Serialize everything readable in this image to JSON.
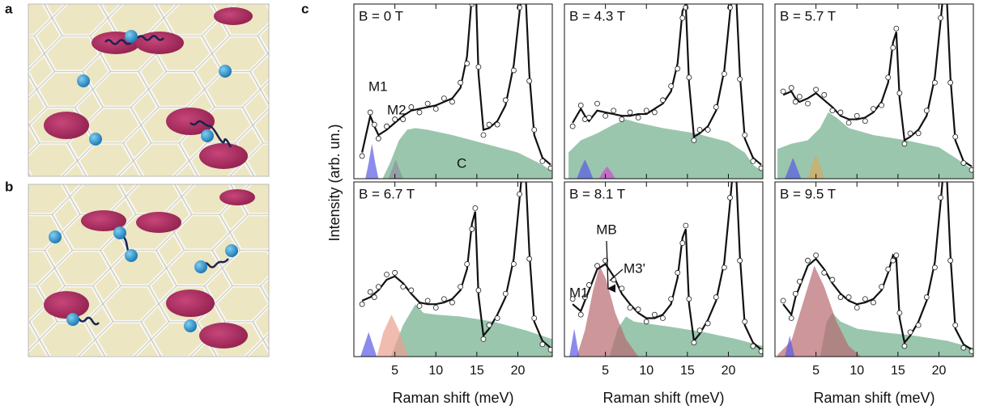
{
  "figure": {
    "panel_labels": [
      "a",
      "b",
      "c"
    ],
    "y_label": "Intensity (arb. un.)"
  },
  "chart_data": [
    {
      "type": "line",
      "title": "B = 0 T",
      "xlim": [
        0,
        24.2
      ],
      "ylim": [
        0,
        10
      ],
      "xticks": [
        5,
        10,
        15,
        20
      ],
      "x": [
        1,
        2,
        2.5,
        3,
        4,
        5,
        6,
        7,
        8,
        9,
        10,
        11,
        12,
        13,
        13.8,
        14.4,
        14.8,
        15.2,
        15.8,
        16.5,
        17.5,
        18.5,
        19.5,
        20.2,
        20.8,
        21.4,
        22,
        23,
        24
      ],
      "series": [
        {
          "style": "line",
          "color": "#111111",
          "values": [
            1.5,
            3.6,
            3.0,
            2.5,
            2.8,
            3.2,
            3.6,
            3.9,
            4.0,
            4.1,
            4.2,
            4.4,
            4.6,
            5.2,
            7,
            10.5,
            12,
            6,
            2.8,
            2.9,
            3.3,
            4.2,
            6.5,
            9.5,
            12,
            6,
            2.5,
            1.2,
            0.8
          ]
        },
        {
          "style": "points",
          "color": "#ffffff",
          "values": [
            1.3,
            3.8,
            3.1,
            2.3,
            3.0,
            3.4,
            3.4,
            4.1,
            3.8,
            4.3,
            4.0,
            4.6,
            4.4,
            5.5,
            6.6,
            10,
            12,
            6.4,
            2.5,
            3.1,
            3.1,
            4.5,
            6.2,
            9.8,
            12,
            5.6,
            2.8,
            1.0,
            0.6
          ]
        }
      ],
      "components": [
        {
          "color": "#5a5ae6",
          "label": "M1",
          "x": [
            1.4,
            1.8,
            2.2,
            2.6,
            3.0
          ],
          "values": [
            0,
            0.9,
            2.0,
            0.9,
            0
          ]
        },
        {
          "color": "#d048d0",
          "label": "M2",
          "x": [
            4.2,
            4.7,
            5.1,
            5.5,
            6.0
          ],
          "values": [
            0,
            0.6,
            1.1,
            0.6,
            0
          ]
        },
        {
          "color": "#6fae8c",
          "label": "C",
          "x": [
            3.5,
            4.5,
            5.5,
            6.5,
            7.5,
            9,
            12,
            16,
            20,
            23,
            24.2
          ],
          "values": [
            0,
            1.0,
            2.2,
            2.8,
            2.9,
            2.8,
            2.5,
            2.0,
            1.5,
            0.8,
            0.4
          ]
        }
      ]
    },
    {
      "type": "line",
      "title": "B = 4.3 T",
      "xlim": [
        0,
        24.2
      ],
      "ylim": [
        0,
        10
      ],
      "xticks": [
        5,
        10,
        15,
        20
      ],
      "x": [
        1,
        2,
        2.5,
        3,
        4,
        5,
        6,
        7,
        8,
        9,
        10,
        11,
        12,
        13,
        13.8,
        14.4,
        14.8,
        15.2,
        15.8,
        16.5,
        17.5,
        18.5,
        19.5,
        20.2,
        20.8,
        21.4,
        22,
        23,
        24
      ],
      "series": [
        {
          "style": "line",
          "color": "#111111",
          "values": [
            3.2,
            4.0,
            3.6,
            3.3,
            3.9,
            3.8,
            3.7,
            3.6,
            3.6,
            3.7,
            3.7,
            4.0,
            4.3,
            5.0,
            6.6,
            9.6,
            10,
            5.5,
            2.4,
            2.6,
            3.0,
            3.9,
            6.2,
            9.5,
            12,
            6,
            2.3,
            1.2,
            0.8
          ]
        },
        {
          "style": "points",
          "color": "#ffffff",
          "values": [
            3.0,
            4.2,
            3.4,
            3.5,
            4.3,
            3.6,
            3.9,
            3.4,
            3.8,
            3.5,
            3.9,
            3.8,
            4.5,
            5.3,
            6.3,
            9.2,
            9.8,
            5.8,
            2.2,
            2.8,
            2.8,
            4.1,
            6.0,
            9.8,
            12,
            5.7,
            2.5,
            1.0,
            0.6
          ]
        }
      ],
      "components": [
        {
          "color": "#6fae8c",
          "x": [
            0.5,
            2,
            4,
            6,
            7.5,
            9,
            12,
            16,
            20,
            22,
            23,
            24.2
          ],
          "values": [
            1.5,
            2.2,
            2.6,
            3.1,
            3.4,
            3.2,
            2.9,
            2.6,
            2.1,
            1.5,
            0.8,
            0.4
          ]
        },
        {
          "color": "#5a5ae6",
          "x": [
            1.5,
            2,
            2.5,
            3,
            3.5
          ],
          "values": [
            0,
            0.6,
            1.1,
            0.6,
            0
          ]
        },
        {
          "color": "#d048d0",
          "x": [
            4.2,
            4.7,
            5.2,
            5.7,
            6.2
          ],
          "values": [
            0,
            0.4,
            0.7,
            0.4,
            0
          ]
        }
      ]
    },
    {
      "type": "line",
      "title": "B = 5.7 T",
      "xlim": [
        0,
        24.2
      ],
      "ylim": [
        0,
        10
      ],
      "xticks": [
        5,
        10,
        15,
        20
      ],
      "x": [
        1,
        2,
        2.5,
        3,
        4,
        5,
        6,
        7,
        8,
        9,
        10,
        11,
        12,
        13,
        13.8,
        14.4,
        14.8,
        15.2,
        15.8,
        16.5,
        17.5,
        18.5,
        19.5,
        20.2,
        20.8,
        21.4,
        22,
        23,
        24
      ],
      "series": [
        {
          "style": "line",
          "color": "#111111",
          "values": [
            4.8,
            5.0,
            4.6,
            4.4,
            4.6,
            4.9,
            4.5,
            4.1,
            3.6,
            3.4,
            3.4,
            3.5,
            3.8,
            4.4,
            5.5,
            7.8,
            8.4,
            4.6,
            2.2,
            2.4,
            2.8,
            3.6,
            5.8,
            9,
            12,
            5.8,
            2.2,
            1.0,
            0.7
          ]
        },
        {
          "style": "points",
          "color": "#ffffff",
          "values": [
            5.0,
            5.2,
            4.4,
            4.7,
            4.3,
            5.1,
            4.8,
            3.9,
            3.8,
            3.2,
            3.6,
            3.3,
            4.0,
            4.2,
            5.8,
            7.5,
            8.6,
            4.9,
            2.0,
            2.6,
            2.6,
            3.9,
            5.5,
            9.2,
            12,
            5.5,
            2.4,
            0.9,
            0.5
          ]
        }
      ],
      "components": [
        {
          "color": "#6fae8c",
          "x": [
            0.3,
            2,
            4,
            5.5,
            6.5,
            7.5,
            9,
            12,
            16,
            20,
            22,
            24.2
          ],
          "values": [
            1.7,
            2.0,
            2.2,
            2.9,
            3.8,
            3.5,
            2.9,
            2.5,
            2.2,
            1.8,
            1.2,
            0.5
          ]
        },
        {
          "color": "#5a5ae6",
          "x": [
            1.2,
            1.7,
            2.2,
            2.7,
            3.2
          ],
          "values": [
            0,
            0.6,
            1.2,
            0.6,
            0
          ]
        },
        {
          "color": "#d9a860",
          "x": [
            4,
            4.5,
            5,
            5.5,
            6
          ],
          "values": [
            0,
            0.8,
            1.4,
            0.8,
            0
          ]
        }
      ]
    },
    {
      "type": "line",
      "title": "B = 6.7 T",
      "x_label": "Raman shift (meV)",
      "xlim": [
        0,
        24.2
      ],
      "ylim": [
        0,
        10
      ],
      "xticks": [
        5,
        10,
        15,
        20
      ],
      "x": [
        1,
        2,
        2.5,
        3,
        4,
        5,
        6,
        7,
        8,
        9,
        10,
        11,
        12,
        13,
        13.8,
        14.4,
        14.8,
        15.2,
        15.8,
        16.5,
        17.5,
        18.5,
        19.5,
        20.2,
        20.8,
        21.4,
        22,
        23,
        24
      ],
      "series": [
        {
          "style": "line",
          "color": "#111111",
          "values": [
            3.2,
            3.4,
            3.6,
            3.8,
            4.4,
            4.6,
            4.2,
            3.6,
            3.1,
            3.0,
            3.0,
            3.1,
            3.3,
            3.8,
            5.0,
            7.6,
            8.3,
            3.5,
            1.2,
            1.6,
            2.4,
            3.4,
            5.6,
            9.0,
            12,
            6,
            2.0,
            0.9,
            0.5
          ]
        },
        {
          "style": "points",
          "color": "#ffffff",
          "values": [
            3.0,
            3.7,
            3.4,
            4.0,
            4.7,
            4.8,
            4.0,
            3.8,
            2.9,
            3.2,
            2.8,
            3.3,
            3.1,
            4.0,
            5.3,
            7.3,
            8.5,
            3.8,
            1.0,
            1.8,
            2.2,
            3.6,
            5.3,
            9.3,
            12,
            5.6,
            2.2,
            0.7,
            0.4
          ]
        }
      ],
      "components": [
        {
          "color": "#6fae8c",
          "x": [
            4.5,
            6,
            7.5,
            8.5,
            10,
            13,
            17,
            21,
            24.2
          ],
          "values": [
            0,
            1.8,
            3.0,
            2.5,
            2.4,
            2.3,
            2.0,
            1.5,
            1.0
          ]
        },
        {
          "color": "#5a5ae6",
          "x": [
            0.8,
            1.3,
            1.8,
            2.3,
            2.8
          ],
          "values": [
            0,
            0.7,
            1.4,
            0.7,
            0
          ]
        },
        {
          "color": "#eba08e",
          "x": [
            2.8,
            3.6,
            4.6,
            5.6,
            6.6
          ],
          "values": [
            0,
            1.4,
            2.4,
            1.4,
            0
          ]
        }
      ]
    },
    {
      "type": "line",
      "title": "B = 8.1 T",
      "x_label": "Raman shift (meV)",
      "xlim": [
        0,
        24.2
      ],
      "ylim": [
        0,
        10
      ],
      "xticks": [
        5,
        10,
        15,
        20
      ],
      "x": [
        1,
        2,
        2.5,
        3,
        4,
        5,
        6,
        7,
        8,
        9,
        10,
        11,
        12,
        13,
        13.8,
        14.4,
        14.8,
        15.2,
        15.8,
        16.5,
        17.5,
        18.5,
        19.5,
        20.2,
        20.8,
        21.4,
        22,
        23,
        24
      ],
      "series": [
        {
          "style": "line",
          "color": "#111111",
          "values": [
            3.0,
            2.6,
            3.2,
            3.8,
            5.0,
            5.3,
            4.6,
            3.6,
            3.0,
            2.5,
            2.2,
            2.2,
            2.4,
            3.0,
            4.5,
            6.8,
            7.3,
            3.0,
            0.9,
            1.3,
            2.1,
            3.2,
            5.4,
            8.8,
            12,
            5.8,
            1.8,
            0.8,
            0.4
          ]
        },
        {
          "style": "points",
          "color": "#ffffff",
          "values": [
            3.3,
            2.4,
            3.4,
            4.1,
            5.2,
            5.5,
            4.4,
            3.9,
            2.8,
            2.7,
            2.0,
            2.4,
            2.2,
            3.3,
            4.8,
            6.5,
            7.5,
            3.3,
            0.8,
            1.5,
            1.9,
            3.4,
            5.1,
            9.1,
            12,
            5.5,
            2.0,
            0.6,
            0.3
          ]
        }
      ],
      "components": [
        {
          "color": "#6fae8c",
          "x": [
            5.5,
            6.5,
            7.5,
            8.5,
            10,
            13,
            17,
            21,
            24.2
          ],
          "values": [
            0,
            1.6,
            2.3,
            2.0,
            1.9,
            1.7,
            1.4,
            1.0,
            0.6
          ]
        },
        {
          "color": "#b86a70",
          "label": "MB",
          "x": [
            1.5,
            2.5,
            3.5,
            4.3,
            5.1,
            6.2,
            7.5,
            9
          ],
          "values": [
            0,
            1.5,
            3.8,
            5.2,
            4.4,
            2.5,
            1.0,
            0
          ]
        },
        {
          "color": "#5a5ae6",
          "label": "M1",
          "x": [
            0.6,
            0.9,
            1.2,
            1.5,
            1.8
          ],
          "values": [
            0,
            0.8,
            1.6,
            0.8,
            0
          ]
        }
      ],
      "annotations": [
        {
          "text": "M3'",
          "color": "#111111"
        }
      ]
    },
    {
      "type": "line",
      "title": "B = 9.5 T",
      "x_label": "Raman shift (meV)",
      "xlim": [
        0,
        24.2
      ],
      "ylim": [
        0,
        10
      ],
      "xticks": [
        5,
        10,
        15,
        20
      ],
      "x": [
        1,
        2,
        2.5,
        3,
        4,
        5,
        6,
        7,
        8,
        9,
        10,
        11,
        12,
        13,
        13.8,
        14.4,
        14.8,
        15.2,
        15.8,
        16.5,
        17.5,
        18.5,
        19.5,
        20.2,
        20.8,
        21.4,
        22,
        23,
        24
      ],
      "series": [
        {
          "style": "line",
          "color": "#111111",
          "values": [
            3.0,
            2.4,
            3.4,
            4.0,
            5.2,
            5.6,
            5.0,
            4.2,
            3.6,
            3.2,
            3.0,
            3.1,
            3.3,
            3.8,
            4.8,
            5.8,
            5.6,
            2.2,
            0.8,
            1.2,
            2.0,
            3.2,
            5.4,
            8.8,
            12,
            5.8,
            1.6,
            0.7,
            0.4
          ]
        },
        {
          "style": "points",
          "color": "#ffffff",
          "values": [
            3.2,
            2.2,
            3.6,
            4.3,
            5.5,
            5.8,
            4.8,
            4.4,
            3.4,
            3.4,
            2.8,
            3.3,
            3.1,
            4.0,
            5.0,
            5.5,
            5.8,
            2.5,
            0.6,
            1.4,
            1.8,
            3.4,
            5.1,
            9.1,
            12,
            5.5,
            1.8,
            0.5,
            0.3
          ]
        }
      ],
      "components": [
        {
          "color": "#6fae8c",
          "x": [
            5.5,
            6.3,
            7,
            8,
            10,
            13,
            17,
            21,
            24.2
          ],
          "values": [
            0,
            2.0,
            2.5,
            2.0,
            1.6,
            1.4,
            1.2,
            0.9,
            0.5
          ]
        },
        {
          "color": "#b86a70",
          "x": [
            0.3,
            2,
            3.5,
            4.8,
            6,
            7.5,
            9,
            10.5
          ],
          "values": [
            0.1,
            0.9,
            3.2,
            5.2,
            4.0,
            2.0,
            0.6,
            0
          ]
        },
        {
          "color": "#5a5ae6",
          "x": [
            1.2,
            1.5,
            1.8,
            2.1,
            2.4
          ],
          "values": [
            0,
            0.6,
            1.2,
            0.6,
            0
          ]
        }
      ]
    }
  ]
}
